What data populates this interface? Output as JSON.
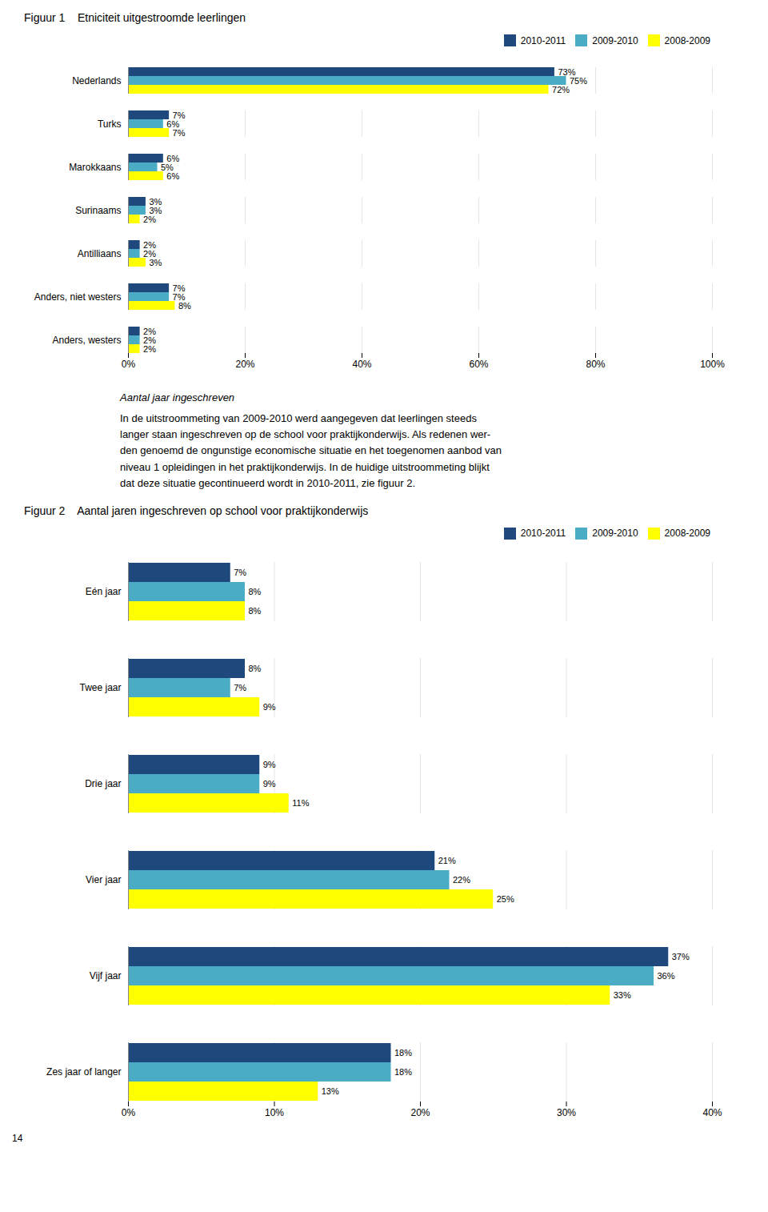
{
  "chart_data": [
    {
      "type": "bar",
      "orientation": "horizontal",
      "title": "Figuur 1    Etniciteit uitgestroomde leerlingen",
      "categories": [
        "Anders, westers",
        "Anders, niet westers",
        "Antilliaans",
        "Surinaams",
        "Marokkaans",
        "Turks",
        "Nederlands"
      ],
      "series": [
        {
          "name": "2010-2011",
          "color": "#1F497D",
          "values": [
            2,
            7,
            2,
            3,
            6,
            7,
            73
          ],
          "value_labels": [
            "2%",
            "7%",
            "2%",
            "3%",
            "6%",
            "7%",
            "73%"
          ]
        },
        {
          "name": "2009-2010",
          "color": "#4BACC6",
          "values": [
            2,
            7,
            2,
            3,
            5,
            6,
            75
          ],
          "value_labels": [
            "2%",
            "7%",
            "2%",
            "3%",
            "5%",
            "6%",
            "75%"
          ]
        },
        {
          "name": "2008-2009",
          "color": "#FFFF00",
          "values": [
            2,
            8,
            3,
            2,
            6,
            7,
            72
          ],
          "value_labels": [
            "2%",
            "8%",
            "3%",
            "2%",
            "6%",
            "7%",
            "72%"
          ]
        }
      ],
      "xlim": [
        0,
        100
      ],
      "xticks": [
        {
          "value": 0,
          "label": "0%"
        },
        {
          "value": 20,
          "label": "20%"
        },
        {
          "value": 40,
          "label": "40%"
        },
        {
          "value": 60,
          "label": "60%"
        },
        {
          "value": 80,
          "label": "80%"
        },
        {
          "value": 100,
          "label": "100%"
        }
      ],
      "grid": true,
      "legend": "upper right",
      "data_labels": true,
      "annotations": [
        "Aantal jaar ingeschreven",
        "In de uitstroommeting van 2009-2010 werd aangegeven dat leerlingen steeds",
        "langer staan ingeschreven op de school voor praktijkonderwijs. Als redenen wer-",
        "den genoemd de ongunstige economische situatie en het toegenomen aanbod van",
        "niveau 1 opleidingen in het praktijkonderwijs. In de huidige uitstroommeting blijkt",
        "dat deze situatie gecontinueerd wordt in 2010-2011, zie figuur 2."
      ]
    },
    {
      "type": "bar",
      "orientation": "horizontal",
      "title": "Figuur 2    Aantal jaren ingeschreven op school voor praktijkonderwijs",
      "categories": [
        "Zes jaar of langer",
        "Vijf jaar",
        "Vier jaar",
        "Drie jaar",
        "Twee jaar",
        "Eén jaar"
      ],
      "series": [
        {
          "name": "2010-2011",
          "color": "#1F497D",
          "values": [
            18,
            37,
            21,
            9,
            8,
            7
          ],
          "value_labels": [
            "18%",
            "37%",
            "21%",
            "9%",
            "8%",
            "7%"
          ]
        },
        {
          "name": "2009-2010",
          "color": "#4BACC6",
          "values": [
            18,
            36,
            22,
            9,
            7,
            8
          ],
          "value_labels": [
            "18%",
            "36%",
            "22%",
            "9%",
            "7%",
            "8%"
          ]
        },
        {
          "name": "2008-2009",
          "color": "#FFFF00",
          "values": [
            13,
            33,
            25,
            11,
            9,
            8
          ],
          "value_labels": [
            "13%",
            "33%",
            "25%",
            "11%",
            "9%",
            "8%"
          ]
        }
      ],
      "xlim": [
        0,
        40
      ],
      "xticks": [
        {
          "value": 0,
          "label": "0%"
        },
        {
          "value": 10,
          "label": "10%"
        },
        {
          "value": 20,
          "label": "20%"
        },
        {
          "value": 30,
          "label": "30%"
        },
        {
          "value": 40,
          "label": "40%"
        }
      ],
      "grid": true,
      "legend": "upper right",
      "data_labels": true,
      "annotations": [
        "14"
      ]
    }
  ]
}
